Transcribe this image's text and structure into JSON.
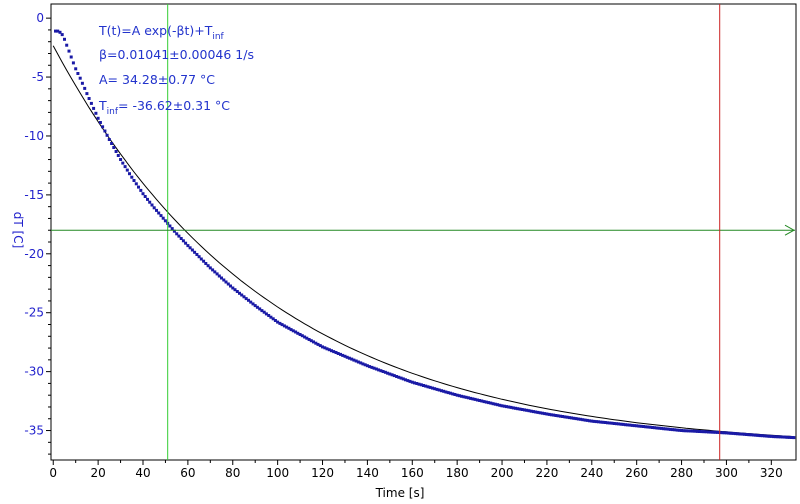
{
  "chart_data": {
    "type": "scatter",
    "xlabel": "Time [s]",
    "ylabel": "dT [C]",
    "xlim": [
      -1,
      331
    ],
    "ylim": [
      -37.5,
      1.2
    ],
    "x_ticks": [
      0,
      20,
      40,
      60,
      80,
      100,
      120,
      140,
      160,
      180,
      200,
      220,
      240,
      260,
      280,
      300,
      320
    ],
    "y_ticks": [
      0,
      -5,
      -10,
      -15,
      -20,
      -25,
      -30,
      -35
    ],
    "grid": false,
    "annotations": {
      "line1_main": "T(t)=A exp(-βt)+T",
      "line1_sub": "inf",
      "line2": "β=0.01041±0.00046 1/s",
      "line3": "A= 34.28±0.77 °C",
      "line4_main": "T",
      "line4_sub": "inf",
      "line4_rest": "= -36.62±0.31 °C"
    },
    "fit": {
      "A": 34.28,
      "beta": 0.01041,
      "T_inf": -36.62
    },
    "markers": {
      "vertical_green_x": 51,
      "horizontal_green_y": -18,
      "vertical_red_x": 297
    },
    "series": [
      {
        "kind": "measured",
        "x": [
          1,
          2,
          3,
          4,
          5,
          6,
          7,
          8,
          9,
          10,
          12,
          15,
          20,
          25,
          30,
          35,
          40,
          45,
          50,
          55,
          60,
          70,
          80,
          90,
          100,
          120,
          140,
          160,
          180,
          200,
          220,
          240,
          260,
          280,
          300,
          320,
          330
        ],
        "y": [
          -1.1,
          -1.1,
          -1.2,
          -1.4,
          -1.8,
          -2.3,
          -2.8,
          -3.3,
          -3.8,
          -4.3,
          -5.1,
          -6.4,
          -8.5,
          -10.3,
          -12.0,
          -13.5,
          -14.9,
          -16.1,
          -17.2,
          -18.3,
          -19.3,
          -21.2,
          -22.9,
          -24.4,
          -25.8,
          -27.9,
          -29.5,
          -30.9,
          -32.0,
          -32.9,
          -33.6,
          -34.2,
          -34.6,
          -35.0,
          -35.2,
          -35.5,
          -35.6
        ],
        "color": "#1a1aa6"
      },
      {
        "kind": "fit",
        "color": "#000000"
      }
    ],
    "colors": {
      "axis_labels": "#2222cc",
      "vertical_green": "#33cc33",
      "horizontal_green": "#228822",
      "vertical_red": "#cc2222"
    }
  }
}
